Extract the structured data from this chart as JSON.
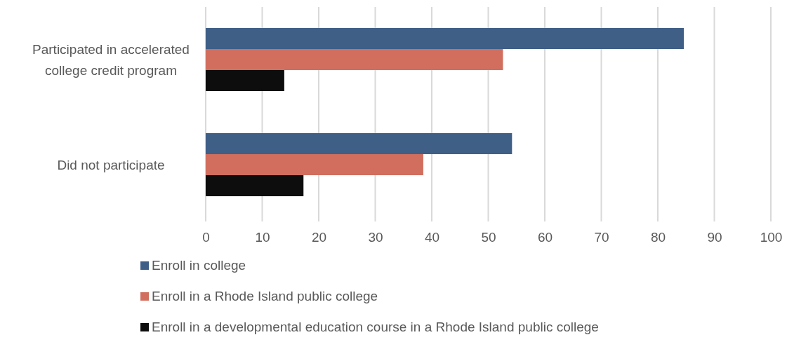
{
  "chart_data": {
    "type": "bar",
    "orientation": "horizontal",
    "categories": [
      "Participated in accelerated college credit program",
      "Did not participate"
    ],
    "series": [
      {
        "name": "Enroll in college",
        "color": "#3f5f87",
        "values": [
          84.6,
          54.2
        ]
      },
      {
        "name": "Enroll in a Rhode Island public college",
        "color": "#d16e5e",
        "values": [
          52.6,
          38.5
        ]
      },
      {
        "name": "Enroll in a developmental education course in a Rhode Island public college",
        "color": "#0d0d0d",
        "values": [
          13.9,
          17.3
        ]
      }
    ],
    "xlim": [
      0,
      100
    ],
    "xticks": [
      0,
      10,
      20,
      30,
      40,
      50,
      60,
      70,
      80,
      90,
      100
    ],
    "grid": "x",
    "legend": "bottom"
  }
}
